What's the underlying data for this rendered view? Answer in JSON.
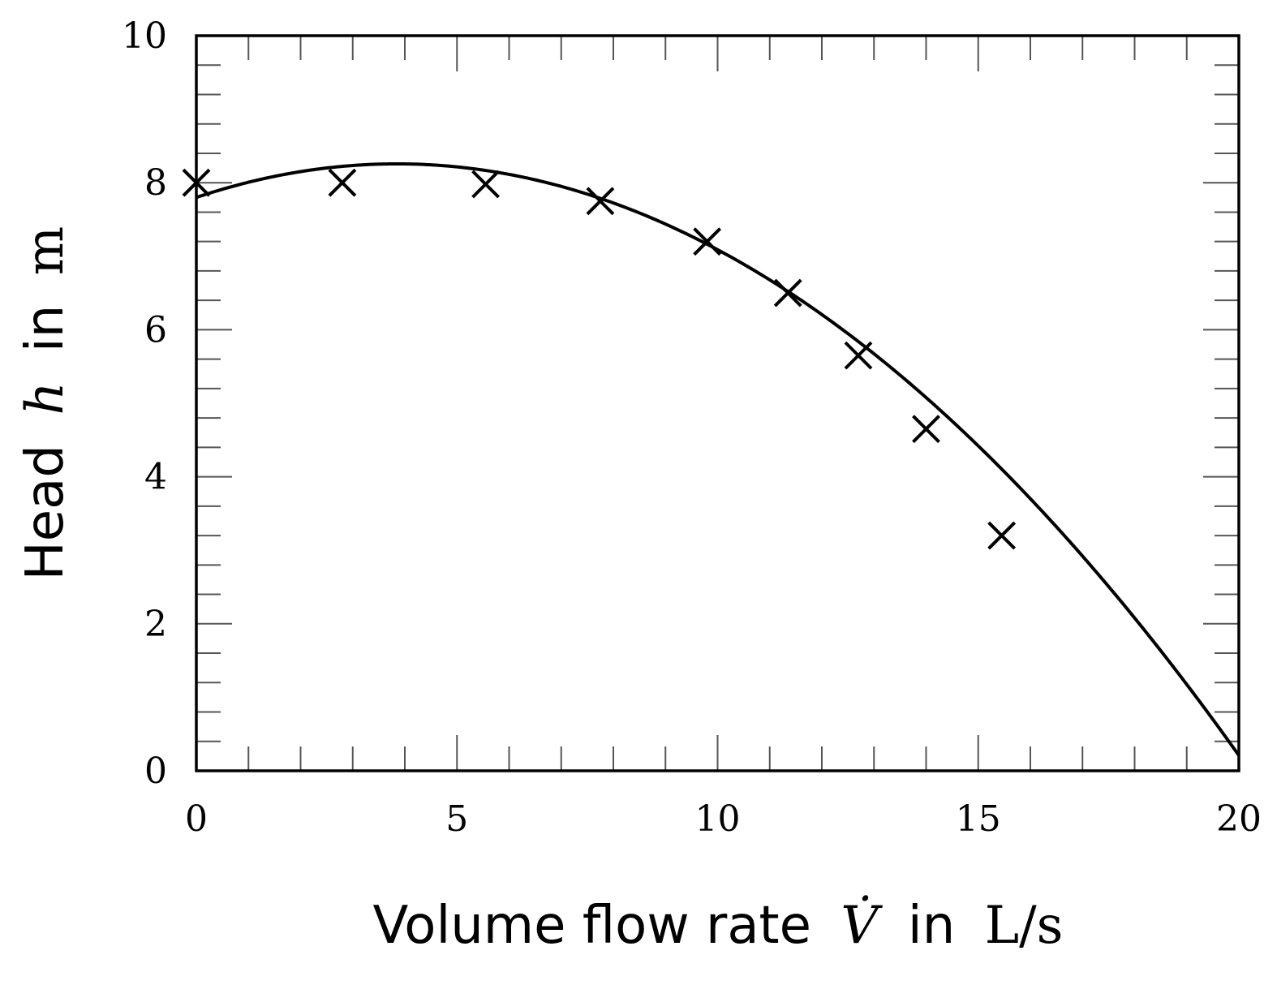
{
  "chart_data": {
    "type": "scatter",
    "xlabel": {
      "text": "Volume flow rate",
      "symbol": "V̇",
      "in_word": "in",
      "unit": "L/s"
    },
    "ylabel": {
      "text": "Head",
      "symbol": "h",
      "in_word": "in",
      "unit": "m"
    },
    "xlim": [
      0,
      20
    ],
    "ylim": [
      0,
      10
    ],
    "x_ticks": [
      0,
      5,
      10,
      15,
      20
    ],
    "y_ticks": [
      0,
      2,
      4,
      6,
      8,
      10
    ],
    "x_minor_step": 1,
    "y_minor_step": 0.4,
    "grid": false,
    "series": [
      {
        "kind": "markers",
        "marker": "x",
        "color": "#000000",
        "x": [
          0.0,
          2.8,
          5.55,
          7.75,
          9.8,
          11.35,
          12.7,
          14.0,
          15.45
        ],
        "y": [
          8.0,
          8.0,
          7.98,
          7.75,
          7.2,
          6.5,
          5.65,
          4.65,
          3.2
        ]
      },
      {
        "kind": "fit-curve",
        "color": "#000000",
        "model": "quadratic",
        "coefficients": {
          "a": -0.03084,
          "b": 0.2373,
          "c": 7.8
        }
      }
    ]
  }
}
